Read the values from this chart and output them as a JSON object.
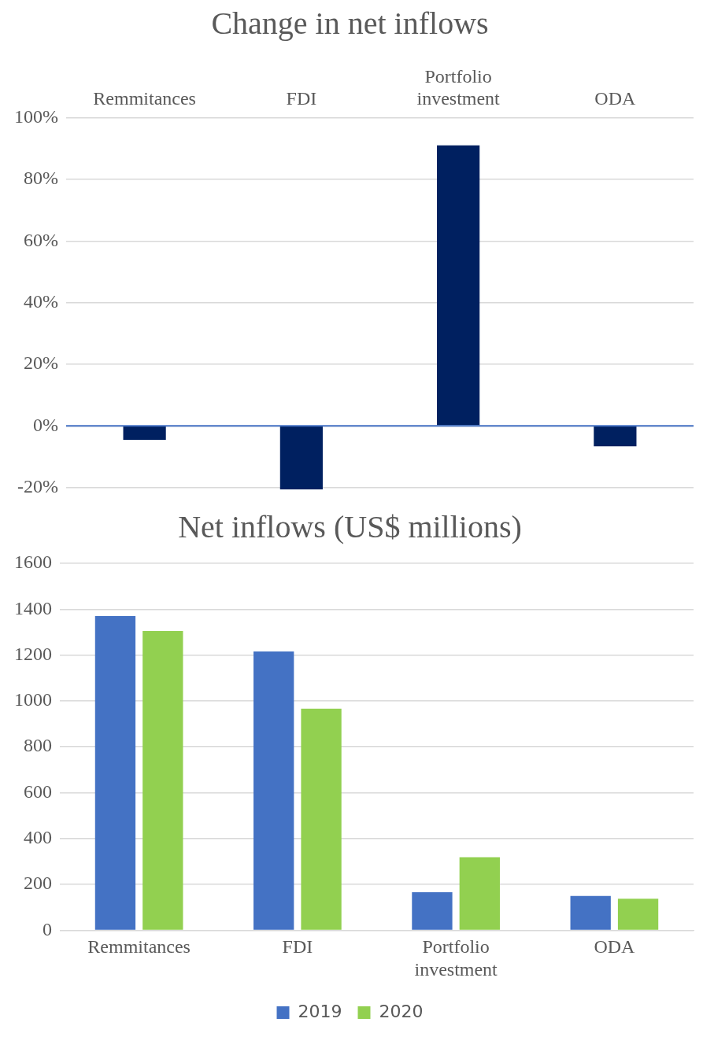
{
  "chart_data": [
    {
      "type": "bar",
      "title": "Change in net inflows",
      "categories": [
        "Remmitances",
        "FDI",
        "Portfolio investment",
        "ODA"
      ],
      "values": [
        -4.5,
        -20.6,
        91,
        -6.6
      ],
      "color": "#002060",
      "ylim": [
        -21,
        100
      ],
      "ref_lines": [
        {
          "axis": "y",
          "value": 0,
          "color": "#4472c4"
        }
      ],
      "yticks": [
        {
          "value": -20,
          "label": "-20%"
        },
        {
          "value": 0,
          "label": "0%"
        },
        {
          "value": 20,
          "label": "20%"
        },
        {
          "value": 40,
          "label": "40%"
        },
        {
          "value": 60,
          "label": "60%"
        },
        {
          "value": 80,
          "label": "80%"
        },
        {
          "value": 100,
          "label": "100%"
        }
      ],
      "grid": "y",
      "legend": false
    },
    {
      "type": "bar",
      "title": "Net inflows (US$ millions)",
      "categories": [
        "Remmitances",
        "FDI",
        "Portfolio investment",
        "ODA"
      ],
      "series": [
        {
          "name": "2019",
          "color": "#4472c4",
          "values": [
            1370,
            1216,
            166,
            150
          ]
        },
        {
          "name": "2020",
          "color": "#92d050",
          "values": [
            1305,
            966,
            319,
            138
          ]
        }
      ],
      "ylim": [
        0,
        1600
      ],
      "yticks": [
        0,
        200,
        400,
        600,
        800,
        1000,
        1200,
        1400,
        1600
      ],
      "grid": "y",
      "legend": "bottom"
    }
  ]
}
